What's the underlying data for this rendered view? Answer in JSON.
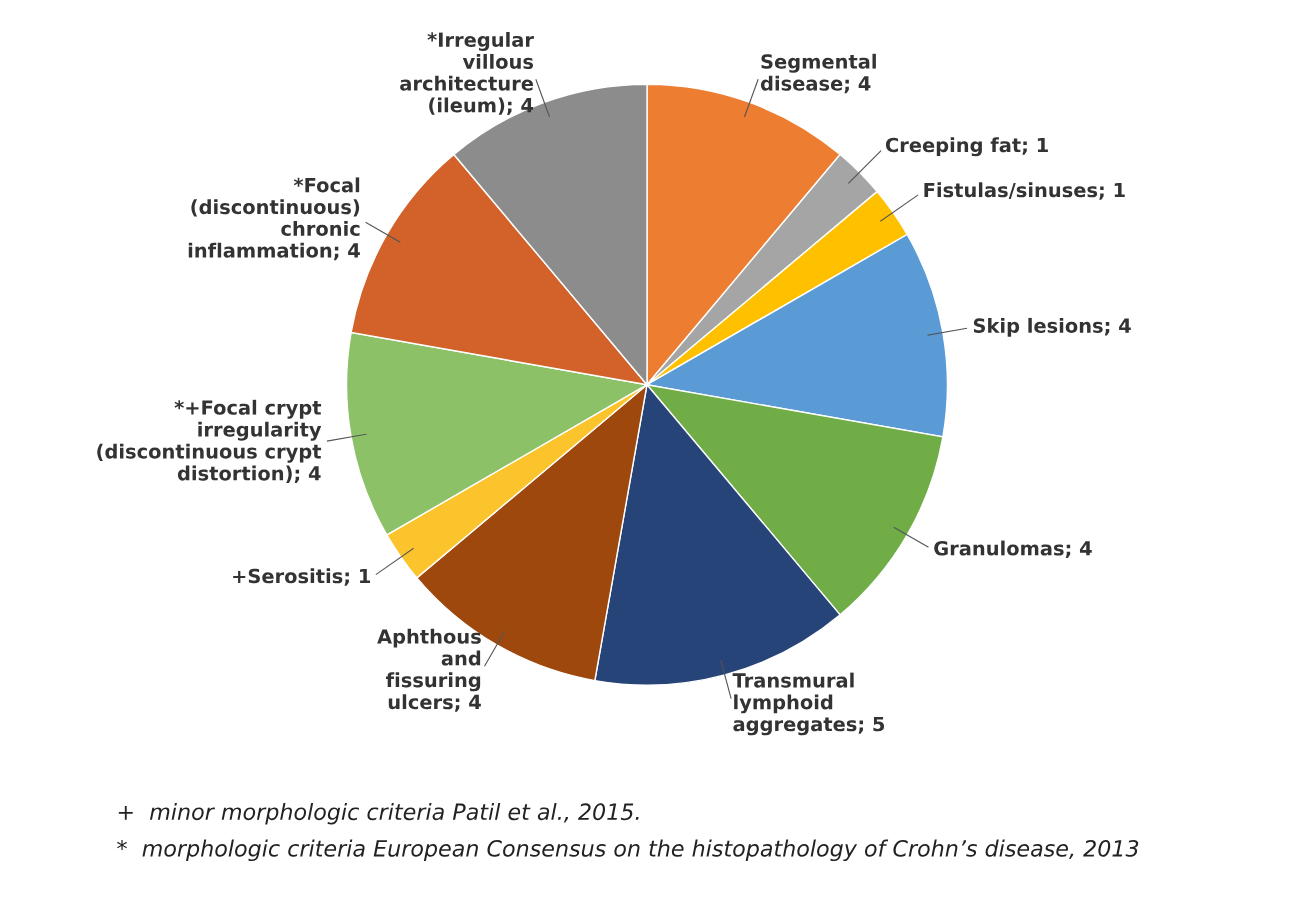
{
  "chart_data": {
    "type": "pie",
    "categories": [
      "Segmental\ndisease; 4",
      "Creeping fat; 1",
      "Fistulas/sinuses; 1",
      "Skip lesions; 4",
      "Granulomas; 4",
      "Transmural\nlymphoid\naggregates; 5",
      "Aphthous\nand\nfissuring\nulcers; 4",
      "+Serositis; 1",
      "*+Focal crypt\nirregularity\n(discontinuous crypt\ndistortion); 4",
      "*Focal\n(discontinuous)\nchronic\ninflammation; 4",
      "*Irregular\nvillous\narchitecture\n(ileum); 4"
    ],
    "values": [
      4,
      1,
      1,
      4,
      4,
      5,
      4,
      1,
      4,
      4,
      4
    ],
    "colors": [
      "#ed7d31",
      "#a5a5a5",
      "#ffc000",
      "#5b9bd5",
      "#70ad47",
      "#264478",
      "#9e480e",
      "#fcc42c",
      "#8cc168",
      "#d2622a",
      "#8c8c8c"
    ],
    "annotations": [
      "+  minor morphologic criteria Patil et al., 2015.",
      "*  morphologic criteria European Consensus on the histopathology of Crohn’s disease, 2013"
    ]
  }
}
